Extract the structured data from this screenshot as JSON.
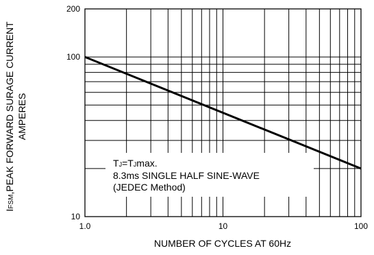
{
  "chart_data": {
    "type": "line",
    "xscale": "log",
    "yscale": "log",
    "xlim": [
      1,
      100
    ],
    "ylim": [
      10,
      200
    ],
    "grid": true,
    "xlabel": "NUMBER OF CYCLES AT 60Hz",
    "ylabel": {
      "line1_prefix": "I",
      "line1_subscript": "FSM",
      "line1_rest": ",PEAK FORWARD SURAGE CURRENT",
      "line2": "AMPERES"
    },
    "x_tick_labels": [
      {
        "value": 1,
        "label": "1.0"
      },
      {
        "value": 10,
        "label": "10"
      },
      {
        "value": 100,
        "label": "100"
      }
    ],
    "y_tick_labels": [
      {
        "value": 10,
        "label": "10"
      },
      {
        "value": 100,
        "label": "100"
      },
      {
        "value": 200,
        "label": "200"
      }
    ],
    "series": [
      {
        "x": [
          1,
          100
        ],
        "y": [
          100,
          20
        ]
      }
    ],
    "annotation": {
      "condition_prefix": "T",
      "condition_sub1": "J",
      "condition_mid": "=T",
      "condition_sub2": "J",
      "condition_rest": "max.",
      "line2": "8.3ms SINGLE HALF SINE-WAVE",
      "line3": "(JEDEC Method)"
    }
  }
}
